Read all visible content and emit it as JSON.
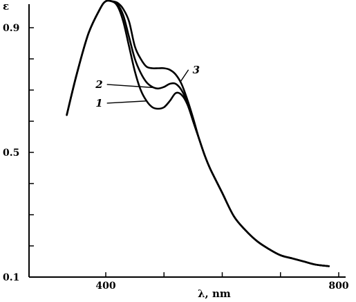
{
  "chart_data": {
    "type": "line",
    "ylabel": "ε",
    "xlabel": "λ, nm",
    "xlim": [
      340,
      800
    ],
    "ylim": [
      0.1,
      1.0
    ],
    "x_ticks": [
      400,
      500,
      600,
      700,
      800
    ],
    "x_tick_labels": [
      "400",
      "",
      "",
      "",
      "800"
    ],
    "y_ticks": [
      0.1,
      0.2,
      0.3,
      0.4,
      0.5,
      0.6,
      0.7,
      0.8,
      0.9
    ],
    "y_tick_labels": [
      "0.1",
      "",
      "",
      "",
      "0.5",
      "",
      "",
      "",
      "0.9"
    ],
    "series": [
      {
        "name": "1",
        "x": [
          333,
          350,
          370,
          390,
          400,
          410,
          420,
          430,
          440,
          450,
          460,
          470,
          480,
          490,
          500,
          510,
          520,
          530,
          540,
          550,
          560,
          570,
          580,
          600,
          620,
          640,
          660,
          680,
          700,
          720,
          740,
          760,
          783
        ],
        "y": [
          0.62,
          0.75,
          0.88,
          0.96,
          0.985,
          0.985,
          0.97,
          0.92,
          0.84,
          0.76,
          0.7,
          0.665,
          0.645,
          0.64,
          0.645,
          0.665,
          0.69,
          0.685,
          0.655,
          0.6,
          0.545,
          0.49,
          0.445,
          0.37,
          0.295,
          0.25,
          0.215,
          0.19,
          0.17,
          0.16,
          0.15,
          0.14,
          0.135
        ]
      },
      {
        "name": "2",
        "x": [
          333,
          350,
          370,
          390,
          400,
          410,
          420,
          430,
          440,
          450,
          460,
          470,
          480,
          490,
          500,
          510,
          520,
          530,
          540,
          550,
          560,
          570,
          580,
          600,
          620,
          640,
          660,
          680,
          700,
          720,
          740,
          760,
          783
        ],
        "y": [
          0.62,
          0.75,
          0.88,
          0.96,
          0.985,
          0.985,
          0.975,
          0.94,
          0.87,
          0.8,
          0.755,
          0.725,
          0.71,
          0.705,
          0.71,
          0.72,
          0.72,
          0.7,
          0.66,
          0.6,
          0.545,
          0.49,
          0.445,
          0.37,
          0.295,
          0.25,
          0.215,
          0.19,
          0.17,
          0.16,
          0.15,
          0.14,
          0.135
        ]
      },
      {
        "name": "3",
        "x": [
          333,
          350,
          370,
          390,
          400,
          410,
          420,
          430,
          440,
          450,
          460,
          470,
          480,
          490,
          500,
          510,
          520,
          530,
          540,
          550,
          560,
          570,
          580,
          600,
          620,
          640,
          660,
          680,
          700,
          720,
          740,
          760,
          783
        ],
        "y": [
          0.62,
          0.75,
          0.88,
          0.96,
          0.985,
          0.985,
          0.98,
          0.96,
          0.92,
          0.84,
          0.8,
          0.775,
          0.77,
          0.77,
          0.77,
          0.765,
          0.75,
          0.72,
          0.67,
          0.61,
          0.545,
          0.49,
          0.445,
          0.37,
          0.295,
          0.25,
          0.215,
          0.19,
          0.17,
          0.16,
          0.15,
          0.14,
          0.135
        ]
      }
    ],
    "curve_labels": [
      {
        "text": "1",
        "series": "1",
        "label_x": 402,
        "label_y": 0.658,
        "target_x": 470
      },
      {
        "text": "2",
        "series": "2",
        "label_x": 402,
        "label_y": 0.718,
        "target_x": 485
      },
      {
        "text": "3",
        "series": "3",
        "label_x": 542,
        "label_y": 0.765,
        "target_x": 528
      }
    ]
  }
}
